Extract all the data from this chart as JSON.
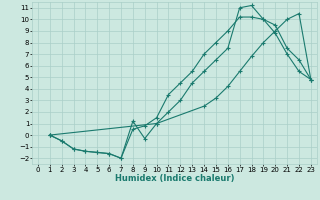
{
  "title": "",
  "xlabel": "Humidex (Indice chaleur)",
  "ylabel": "",
  "background_color": "#cce8e0",
  "grid_color": "#aacfc8",
  "line_color": "#1a7a6e",
  "xlim": [
    -0.5,
    23.5
  ],
  "ylim": [
    -2.5,
    11.5
  ],
  "xticks": [
    0,
    1,
    2,
    3,
    4,
    5,
    6,
    7,
    8,
    9,
    10,
    11,
    12,
    13,
    14,
    15,
    16,
    17,
    18,
    19,
    20,
    21,
    22,
    23
  ],
  "yticks": [
    -2,
    -1,
    0,
    1,
    2,
    3,
    4,
    5,
    6,
    7,
    8,
    9,
    10,
    11
  ],
  "line1_x": [
    1,
    2,
    3,
    4,
    5,
    6,
    7,
    8,
    9,
    10,
    11,
    12,
    13,
    14,
    15,
    16,
    17,
    18,
    19,
    20,
    21,
    22,
    23
  ],
  "line1_y": [
    0,
    -0.5,
    -1.2,
    -1.4,
    -1.5,
    -1.6,
    -2.0,
    1.2,
    -0.3,
    1.0,
    2.0,
    3.0,
    4.5,
    5.5,
    6.5,
    7.5,
    11.0,
    11.2,
    10.0,
    9.5,
    7.5,
    6.5,
    4.8
  ],
  "line2_x": [
    1,
    2,
    3,
    4,
    5,
    6,
    7,
    8,
    9,
    10,
    11,
    12,
    13,
    14,
    15,
    16,
    17,
    18,
    19,
    20,
    21,
    22,
    23
  ],
  "line2_y": [
    0,
    -0.5,
    -1.2,
    -1.4,
    -1.5,
    -1.6,
    -2.0,
    0.5,
    0.8,
    1.5,
    3.5,
    4.5,
    5.5,
    7.0,
    8.0,
    9.0,
    10.2,
    10.2,
    10.0,
    8.8,
    7.0,
    5.5,
    4.8
  ],
  "line3_x": [
    1,
    10,
    14,
    15,
    16,
    17,
    18,
    19,
    20,
    21,
    22,
    23
  ],
  "line3_y": [
    0,
    1.0,
    2.5,
    3.2,
    4.2,
    5.5,
    6.8,
    8.0,
    9.0,
    10.0,
    10.5,
    4.8
  ],
  "tick_fontsize": 5.0,
  "xlabel_fontsize": 6.0,
  "lw": 0.8,
  "ms": 2.5
}
